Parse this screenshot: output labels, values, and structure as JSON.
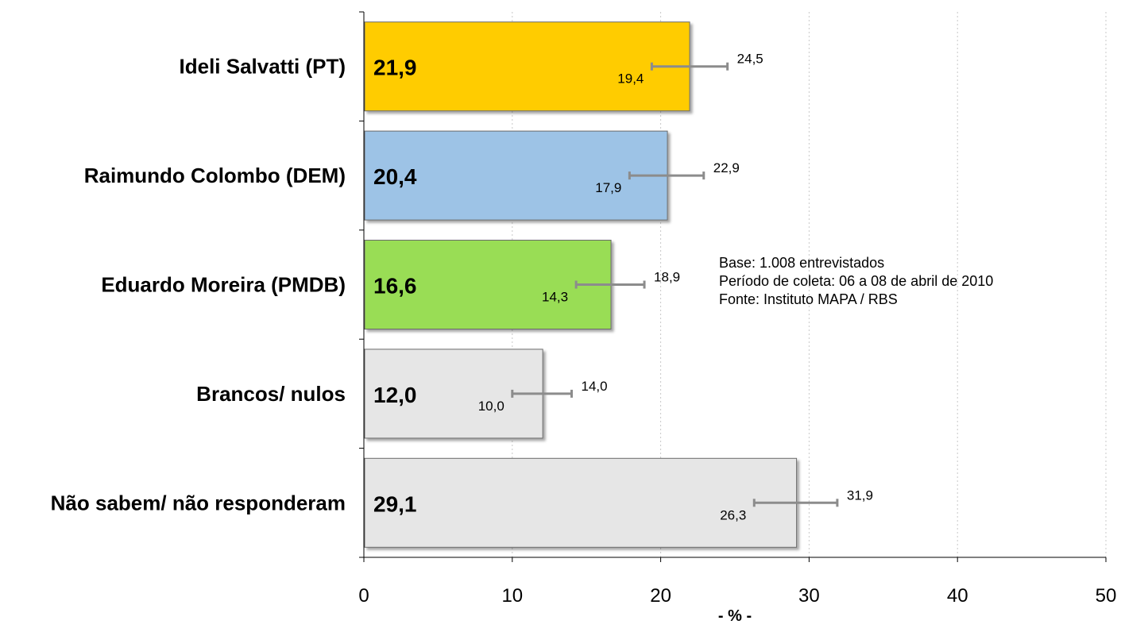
{
  "chart_data": {
    "type": "bar",
    "orientation": "horizontal",
    "categories": [
      "Ideli Salvatti (PT)",
      "Raimundo Colombo (DEM)",
      "Eduardo Moreira (PMDB)",
      "Brancos/ nulos",
      "Não sabem/ não responderam"
    ],
    "values": [
      21.9,
      20.4,
      16.6,
      12.0,
      29.1
    ],
    "value_labels": [
      "21,9",
      "20,4",
      "16,6",
      "12,0",
      "29,1"
    ],
    "error_low": [
      19.4,
      17.9,
      14.3,
      10.0,
      26.3
    ],
    "error_high": [
      24.5,
      22.9,
      18.9,
      14.0,
      31.9
    ],
    "error_low_labels": [
      "19,4",
      "17,9",
      "14,3",
      "10,0",
      "26,3"
    ],
    "error_high_labels": [
      "24,5",
      "22,9",
      "18,9",
      "14,0",
      "31,9"
    ],
    "bar_colors": [
      "#FFCC00",
      "#9DC3E6",
      "#99DD55",
      "#E6E6E6",
      "#E6E6E6"
    ],
    "xlabel": "- % -",
    "xlim": [
      0,
      50
    ],
    "xticks": [
      0,
      10,
      20,
      30,
      40,
      50
    ],
    "grid": "vertical dotted",
    "notes": [
      "Base: 1.008 entrevistados",
      "Período de coleta: 06 a 08 de abril de 2010",
      "Fonte: Instituto MAPA / RBS"
    ]
  }
}
